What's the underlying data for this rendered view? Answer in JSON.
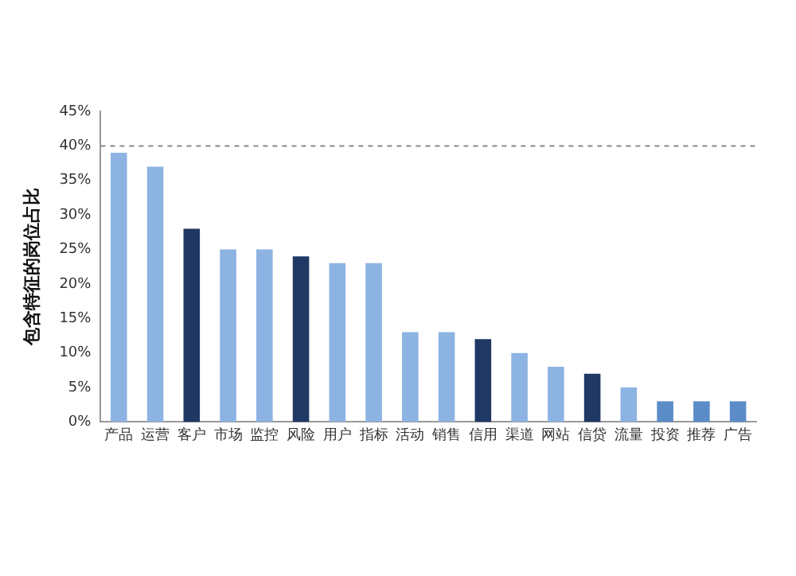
{
  "chart_data": {
    "type": "bar",
    "ylabel": "包含特征的岗位占比",
    "categories": [
      "产品",
      "运营",
      "客户",
      "市场",
      "监控",
      "风险",
      "用户",
      "指标",
      "活动",
      "销售",
      "信用",
      "渠道",
      "网站",
      "信贷",
      "流量",
      "投资",
      "推荐",
      "广告"
    ],
    "values": [
      39,
      37,
      28,
      25,
      25,
      24,
      23,
      23,
      13,
      13,
      12,
      10,
      8,
      7,
      5,
      3,
      3,
      3
    ],
    "colors": [
      "#8db3e2",
      "#8db3e2",
      "#1f3864",
      "#8db3e2",
      "#8db3e2",
      "#1f3864",
      "#8db3e2",
      "#8db3e2",
      "#8db3e2",
      "#8db3e2",
      "#1f3864",
      "#8db3e2",
      "#8db3e2",
      "#1f3864",
      "#8db3e2",
      "#5b8cc8",
      "#5b8cc8",
      "#5b8cc8"
    ],
    "ylim": [
      0,
      45
    ],
    "yticks": [
      {
        "value": 0,
        "label": "0%"
      },
      {
        "value": 5,
        "label": "5%"
      },
      {
        "value": 10,
        "label": "10%"
      },
      {
        "value": 15,
        "label": "15%"
      },
      {
        "value": 20,
        "label": "20%"
      },
      {
        "value": 25,
        "label": "25%"
      },
      {
        "value": 30,
        "label": "30%"
      },
      {
        "value": 35,
        "label": "35%"
      },
      {
        "value": 40,
        "label": "40%"
      },
      {
        "value": 45,
        "label": "45%"
      }
    ],
    "ref_lines": [
      {
        "axis": "y",
        "value": 40,
        "line_style": "dashed",
        "color": "#888888"
      }
    ],
    "grid": false,
    "legend": false
  }
}
